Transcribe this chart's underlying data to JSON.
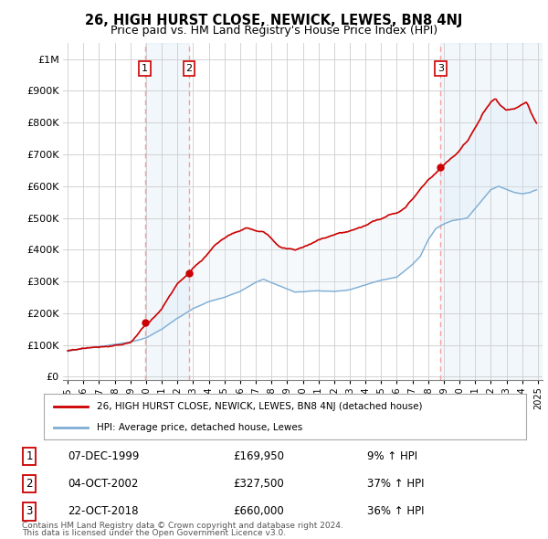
{
  "title": "26, HIGH HURST CLOSE, NEWICK, LEWES, BN8 4NJ",
  "subtitle": "Price paid vs. HM Land Registry's House Price Index (HPI)",
  "ylabel_ticks": [
    "£0",
    "£100K",
    "£200K",
    "£300K",
    "£400K",
    "£500K",
    "£600K",
    "£700K",
    "£800K",
    "£900K",
    "£1M"
  ],
  "ytick_values": [
    0,
    100000,
    200000,
    300000,
    400000,
    500000,
    600000,
    700000,
    800000,
    900000,
    1000000
  ],
  "xlim": [
    1994.7,
    2025.3
  ],
  "ylim": [
    -10000,
    1050000
  ],
  "legend_line1": "26, HIGH HURST CLOSE, NEWICK, LEWES, BN8 4NJ (detached house)",
  "legend_line2": "HPI: Average price, detached house, Lewes",
  "transactions": [
    {
      "num": 1,
      "date": "07-DEC-1999",
      "price": 169950,
      "pct": "9% ↑ HPI",
      "year": 1999.92
    },
    {
      "num": 2,
      "date": "04-OCT-2002",
      "price": 327500,
      "pct": "37% ↑ HPI",
      "year": 2002.75
    },
    {
      "num": 3,
      "date": "22-OCT-2018",
      "price": 660000,
      "pct": "36% ↑ HPI",
      "year": 2018.8
    }
  ],
  "footnote1": "Contains HM Land Registry data © Crown copyright and database right 2024.",
  "footnote2": "This data is licensed under the Open Government Licence v3.0.",
  "red_color": "#cc0000",
  "blue_line_color": "#7dadd4",
  "shade_color": "#d8e8f5",
  "marker_box_color": "#cc0000",
  "vline_color": "#f5a0a0",
  "background_color": "#ffffff",
  "grid_color": "#cccccc",
  "title_fontsize": 10.5,
  "subtitle_fontsize": 9
}
